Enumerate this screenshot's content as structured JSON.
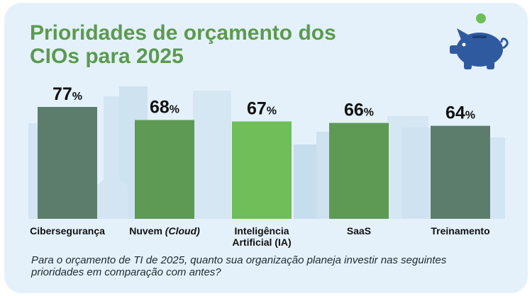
{
  "title": "Prioridades de orçamento dos\nCIOs para 2025",
  "footnote": "Para o orçamento de TI de 2025, quanto sua organização planeja investir nas seguintes prioridades em comparação com antes?",
  "icon": "piggy-bank-icon",
  "colors": {
    "background": "#e4f1fb",
    "title": "#5b9a4f",
    "piggy": "#2f5aa0",
    "coin": "#6bbf59",
    "label_text": "#111111"
  },
  "chart_data": {
    "type": "bar",
    "categories": [
      {
        "parts": [
          {
            "text": "Cibersegurança",
            "italic": false
          }
        ]
      },
      {
        "parts": [
          {
            "text": "Nuvem ",
            "italic": false
          },
          {
            "text": "(Cloud)",
            "italic": true
          }
        ]
      },
      {
        "parts": [
          {
            "text": "Inteligência",
            "italic": false
          }
        ],
        "line2": "Artificial (IA)"
      },
      {
        "parts": [
          {
            "text": "SaaS",
            "italic": false
          }
        ]
      },
      {
        "parts": [
          {
            "text": "Treinamento",
            "italic": false
          }
        ]
      }
    ],
    "values": [
      77,
      68,
      67,
      66,
      64
    ],
    "value_suffix": "%",
    "bar_colors": [
      "#5c7d6b",
      "#5f9a55",
      "#6fbe59",
      "#5f9a55",
      "#5c7d6b"
    ],
    "ylim": [
      0,
      100
    ],
    "grid": false,
    "legend": "none"
  }
}
